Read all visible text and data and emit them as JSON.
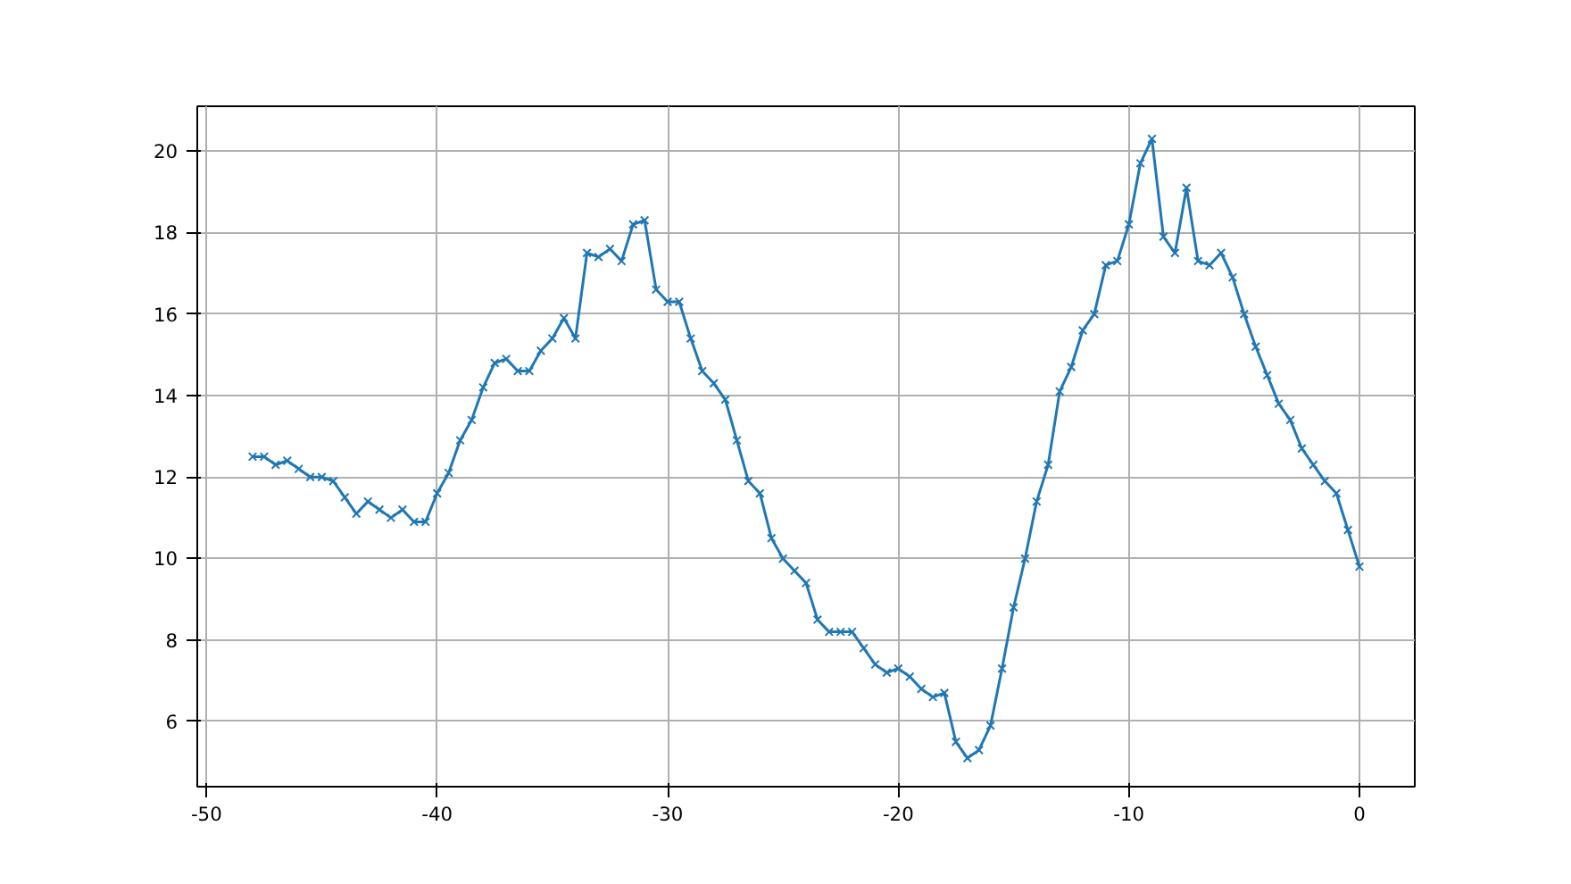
{
  "chart_data": {
    "type": "line",
    "marker": "cross",
    "line_style": "solid",
    "grid": true,
    "x": [
      -48,
      -47.5,
      -47,
      -46.5,
      -46,
      -45.5,
      -45,
      -44.5,
      -44,
      -43.5,
      -43,
      -42.5,
      -42,
      -41.5,
      -41,
      -40.5,
      -40,
      -39.5,
      -39,
      -38.5,
      -38,
      -37.5,
      -37,
      -36.5,
      -36,
      -35.5,
      -35,
      -34.5,
      -34,
      -33.5,
      -33,
      -32.5,
      -32,
      -31.5,
      -31,
      -30.5,
      -30,
      -29.5,
      -29,
      -28.5,
      -28,
      -27.5,
      -27,
      -26.5,
      -26,
      -25.5,
      -25,
      -24.5,
      -24,
      -23.5,
      -23,
      -22.5,
      -22,
      -21.5,
      -21,
      -20.5,
      -20,
      -19.5,
      -19,
      -18.5,
      -18,
      -17.5,
      -17,
      -16.5,
      -16,
      -15.5,
      -15,
      -14.5,
      -14,
      -13.5,
      -13,
      -12.5,
      -12,
      -11.5,
      -11,
      -10.5,
      -10,
      -9.5,
      -9,
      -8.5,
      -8,
      -7.5,
      -7,
      -6.5,
      -6,
      -5.5,
      -5,
      -4.5,
      -4,
      -3.5,
      -3,
      -2.5,
      -2,
      -1.5,
      -1,
      -0.5,
      0
    ],
    "series": [
      {
        "color": "#1f77b4",
        "values": [
          12.5,
          12.5,
          12.3,
          12.4,
          12.2,
          12.0,
          12.0,
          11.9,
          11.5,
          11.1,
          11.4,
          11.2,
          11.0,
          11.2,
          10.9,
          10.9,
          11.6,
          12.1,
          12.9,
          13.4,
          14.2,
          14.8,
          14.9,
          14.6,
          14.6,
          15.1,
          15.4,
          15.9,
          15.4,
          17.5,
          17.4,
          17.6,
          17.3,
          18.2,
          18.3,
          16.6,
          16.3,
          16.3,
          15.4,
          14.6,
          14.3,
          13.9,
          12.9,
          11.9,
          11.6,
          10.5,
          10.0,
          9.7,
          9.4,
          8.5,
          8.2,
          8.2,
          8.2,
          7.8,
          7.4,
          7.2,
          7.3,
          7.1,
          6.8,
          6.6,
          6.7,
          5.5,
          5.1,
          5.3,
          5.9,
          7.3,
          8.8,
          10.0,
          11.4,
          12.3,
          14.1,
          14.7,
          15.6,
          16.0,
          17.2,
          17.3,
          18.2,
          19.7,
          20.3,
          17.9,
          17.5,
          19.1,
          17.3,
          17.2,
          17.5,
          16.9,
          16.0,
          15.2,
          14.5,
          13.8,
          13.4,
          12.7,
          12.3,
          11.9,
          11.6,
          10.7,
          9.8
        ]
      }
    ],
    "xlim": [
      -50.4,
      2.4
    ],
    "ylim": [
      4.4,
      21.1
    ],
    "xticks": [
      -50,
      -40,
      -30,
      -20,
      -10,
      0
    ],
    "yticks": [
      6,
      8,
      10,
      12,
      14,
      16,
      18,
      20
    ]
  }
}
